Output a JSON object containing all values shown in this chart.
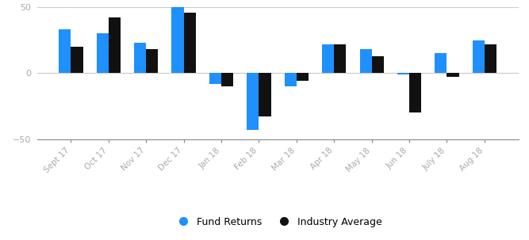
{
  "categories": [
    "Sept 17",
    "Oct 17",
    "Nov 17",
    "Dec 17",
    "Jan 18",
    "Feb 18",
    "Mar 18",
    "Apr 18",
    "May 18",
    "Jun 18",
    "July 18",
    "Aug 18"
  ],
  "fund_returns": [
    33,
    30,
    23,
    51,
    -8,
    -43,
    -10,
    22,
    18,
    -1,
    15,
    25
  ],
  "industry_avg": [
    20,
    42,
    18,
    46,
    -10,
    -33,
    -6,
    22,
    13,
    -30,
    -3,
    22
  ],
  "fund_color": "#1E90FF",
  "industry_color": "#111111",
  "ylim": [
    -50,
    50
  ],
  "yticks": [
    -50,
    0,
    50
  ],
  "legend_labels": [
    "Fund Returns",
    "Industry Average"
  ],
  "bar_width": 0.32,
  "background_color": "#ffffff",
  "grid_color": "#cccccc",
  "tick_label_color": "#aaaaaa",
  "fig_width": 6.67,
  "fig_height": 3.03,
  "dpi": 100
}
